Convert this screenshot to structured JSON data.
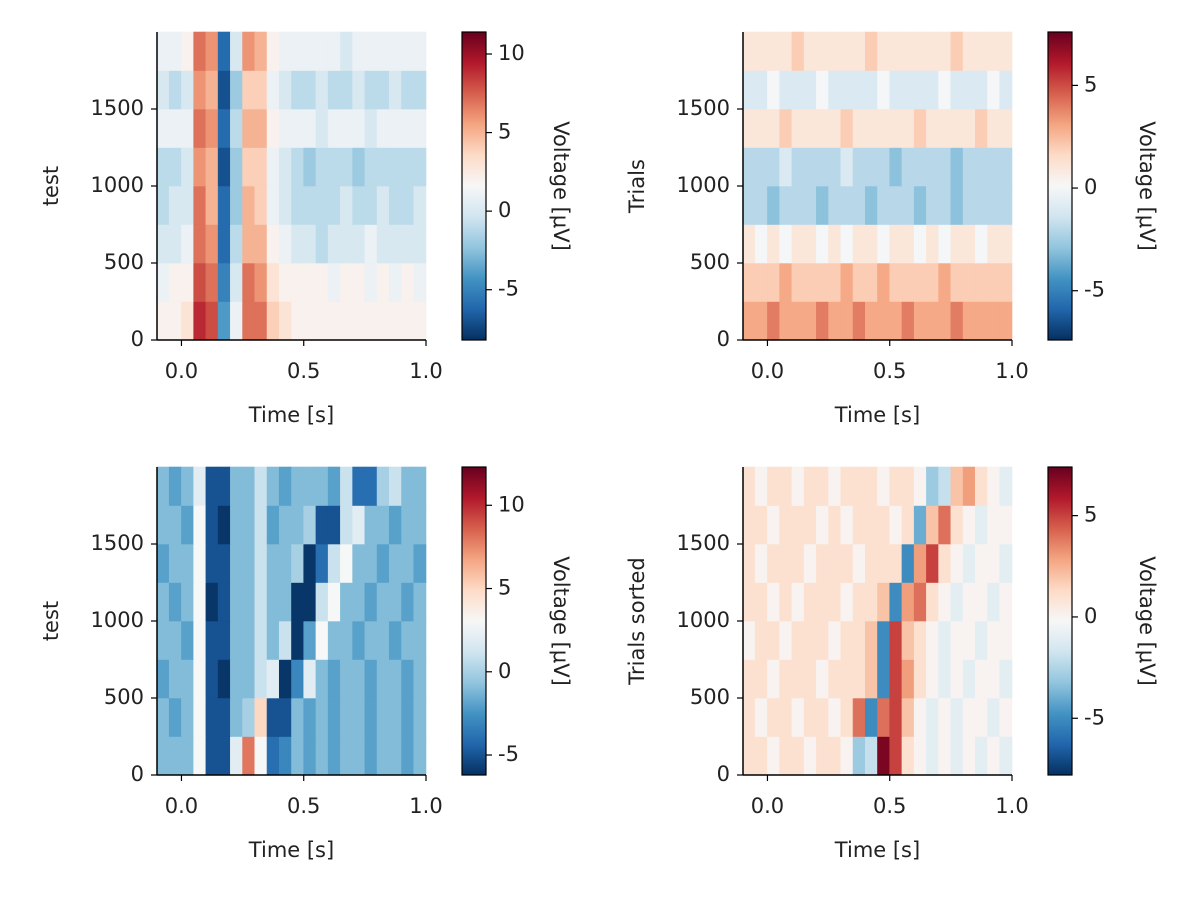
{
  "chart_data": [
    {
      "type": "heatmap",
      "colormap": "RdBu_r",
      "xlabel": "Time [s]",
      "ylabel": "test",
      "colorbar_label": "Voltage [μV]",
      "x": [
        -0.075,
        -0.025,
        0.025,
        0.075,
        0.125,
        0.175,
        0.225,
        0.275,
        0.325,
        0.375,
        0.425,
        0.475,
        0.525,
        0.575,
        0.625,
        0.675,
        0.725,
        0.775,
        0.825,
        0.875,
        0.925,
        0.975
      ],
      "y": [
        125,
        375,
        625,
        875,
        1125,
        1375,
        1625,
        1875
      ],
      "values": [
        [
          2,
          2,
          3,
          9,
          8,
          -4,
          1,
          7,
          7,
          4,
          3,
          2,
          2,
          2,
          2,
          2,
          2,
          2,
          2,
          2,
          2,
          2
        ],
        [
          1,
          2,
          2,
          8,
          7,
          -5,
          0,
          7,
          6,
          3,
          2,
          2,
          2,
          2,
          1,
          2,
          2,
          1,
          2,
          1,
          2,
          1
        ],
        [
          0,
          0,
          1,
          7,
          6,
          -6,
          -1,
          5,
          5,
          2,
          1,
          0,
          0,
          -1,
          0,
          0,
          0,
          1,
          0,
          0,
          0,
          0
        ],
        [
          -1,
          0,
          0,
          7,
          5,
          -6,
          -2,
          5,
          4,
          1,
          0,
          -1,
          -1,
          -1,
          -1,
          0,
          -1,
          -1,
          0,
          -1,
          -1,
          0
        ],
        [
          -1,
          -1,
          0,
          6,
          5,
          -7,
          -2,
          4,
          4,
          1,
          0,
          -1,
          -2,
          -1,
          -1,
          -1,
          -2,
          -1,
          -1,
          -1,
          -1,
          -1
        ],
        [
          1,
          1,
          1,
          7,
          6,
          -6,
          -1,
          5,
          5,
          2,
          1,
          1,
          1,
          0,
          1,
          1,
          1,
          0,
          1,
          1,
          1,
          1
        ],
        [
          0,
          -1,
          0,
          6,
          5,
          -7,
          -2,
          4,
          4,
          1,
          0,
          -1,
          -1,
          0,
          -1,
          -1,
          0,
          -1,
          -1,
          0,
          -1,
          -1
        ],
        [
          1,
          1,
          2,
          7,
          6,
          -6,
          0,
          6,
          5,
          2,
          1,
          1,
          1,
          1,
          1,
          0,
          1,
          1,
          1,
          1,
          1,
          1
        ]
      ],
      "xlim": [
        -0.1,
        1.0
      ],
      "ylim": [
        0,
        2000
      ],
      "xticks": [
        {
          "value": 0,
          "label": "0.0"
        },
        0.5,
        {
          "value": 1,
          "label": "1.0"
        }
      ],
      "yticks": [
        0,
        500,
        1000,
        1500
      ],
      "clim": [
        -8.2,
        11.4
      ],
      "cticks": [
        -5,
        0,
        5,
        10
      ]
    },
    {
      "type": "heatmap",
      "colormap": "RdBu_r",
      "xlabel": "Time [s]",
      "ylabel": "Trials",
      "colorbar_label": "Voltage [μV]",
      "x": [
        -0.075,
        -0.025,
        0.025,
        0.075,
        0.125,
        0.175,
        0.225,
        0.275,
        0.325,
        0.375,
        0.425,
        0.475,
        0.525,
        0.575,
        0.625,
        0.675,
        0.725,
        0.775,
        0.825,
        0.875,
        0.925,
        0.975
      ],
      "y": [
        125,
        375,
        625,
        875,
        1125,
        1375,
        1625,
        1875
      ],
      "values": [
        [
          3,
          3,
          4,
          3,
          3,
          3,
          4,
          3,
          3,
          4,
          3,
          3,
          3,
          4,
          3,
          3,
          3,
          4,
          3,
          3,
          3,
          3
        ],
        [
          2,
          2,
          2,
          3,
          2,
          2,
          2,
          2,
          3,
          2,
          2,
          3,
          2,
          2,
          2,
          2,
          3,
          2,
          2,
          2,
          2,
          2
        ],
        [
          1,
          0,
          1,
          0,
          1,
          1,
          0,
          1,
          0,
          1,
          1,
          0,
          1,
          1,
          0,
          1,
          0,
          1,
          1,
          0,
          1,
          1
        ],
        [
          -2,
          -2,
          -3,
          -2,
          -2,
          -2,
          -3,
          -2,
          -2,
          -2,
          -3,
          -2,
          -2,
          -2,
          -3,
          -2,
          -2,
          -3,
          -2,
          -2,
          -2,
          -2
        ],
        [
          -2,
          -2,
          -2,
          -1,
          -2,
          -2,
          -2,
          -2,
          -1,
          -2,
          -2,
          -2,
          -3,
          -2,
          -2,
          -2,
          -2,
          -3,
          -2,
          -2,
          -2,
          -2
        ],
        [
          1,
          1,
          1,
          2,
          1,
          1,
          1,
          1,
          2,
          1,
          1,
          1,
          1,
          1,
          2,
          1,
          1,
          1,
          1,
          2,
          1,
          1
        ],
        [
          -1,
          -1,
          0,
          -1,
          -1,
          -1,
          0,
          -1,
          -1,
          -1,
          -1,
          0,
          -1,
          -1,
          -1,
          -1,
          0,
          -1,
          -1,
          -1,
          0,
          -1
        ],
        [
          1,
          1,
          1,
          1,
          2,
          1,
          1,
          1,
          1,
          1,
          2,
          1,
          1,
          1,
          1,
          1,
          1,
          2,
          1,
          1,
          1,
          1
        ]
      ],
      "xlim": [
        -0.1,
        1.0
      ],
      "ylim": [
        0,
        2000
      ],
      "xticks": [
        {
          "value": 0,
          "label": "0.0"
        },
        0.5,
        {
          "value": 1,
          "label": "1.0"
        }
      ],
      "yticks": [
        0,
        500,
        1000,
        1500
      ],
      "clim": [
        -7.4,
        7.6
      ],
      "cticks": [
        -5,
        0,
        5
      ]
    },
    {
      "type": "heatmap",
      "colormap": "RdBu_r",
      "xlabel": "Time [s]",
      "ylabel": "test",
      "colorbar_label": "Voltage [μV]",
      "x": [
        -0.075,
        -0.025,
        0.025,
        0.075,
        0.125,
        0.175,
        0.225,
        0.275,
        0.325,
        0.375,
        0.425,
        0.475,
        0.525,
        0.575,
        0.625,
        0.675,
        0.725,
        0.775,
        0.825,
        0.875,
        0.925,
        0.975
      ],
      "y": [
        125,
        375,
        625,
        875,
        1125,
        1375,
        1625,
        1875
      ],
      "values": [
        [
          -1,
          -1,
          -1,
          3,
          -5,
          -5,
          2,
          8,
          3,
          -4,
          -3,
          -1,
          -2,
          -1,
          -2,
          -1,
          -1,
          -2,
          -1,
          -1,
          -2,
          -1
        ],
        [
          -1,
          -2,
          -1,
          3,
          -5,
          -5,
          -1,
          0,
          5,
          -5,
          -5,
          -1,
          -2,
          -1,
          -2,
          -1,
          -1,
          -2,
          -1,
          -1,
          -2,
          -1
        ],
        [
          -2,
          -1,
          -1,
          3,
          -5,
          -6,
          -1,
          -1,
          1,
          2,
          -6,
          -3,
          2,
          -1,
          -2,
          -1,
          -1,
          -2,
          -1,
          -1,
          -2,
          -1
        ],
        [
          -1,
          -1,
          -2,
          3,
          -5,
          -5,
          -1,
          -1,
          1,
          -1,
          1,
          -6,
          -2,
          3,
          -1,
          -1,
          -2,
          -1,
          -1,
          -2,
          -1,
          -1
        ],
        [
          -1,
          -2,
          -1,
          3,
          -6,
          -5,
          -1,
          -1,
          1,
          -1,
          -1,
          -6,
          -6,
          1,
          3,
          -1,
          -1,
          -2,
          -1,
          -1,
          -2,
          -1
        ],
        [
          -2,
          -1,
          -1,
          3,
          -5,
          -5,
          -1,
          -1,
          1,
          -1,
          -1,
          0,
          -6,
          -4,
          1,
          3,
          -1,
          -1,
          -2,
          -1,
          -1,
          -2
        ],
        [
          -1,
          -1,
          -2,
          3,
          -5,
          -6,
          -1,
          -1,
          1,
          -2,
          -1,
          -1,
          0,
          -5,
          -5,
          1,
          2,
          -1,
          -1,
          -2,
          -1,
          -1
        ],
        [
          -1,
          -2,
          -1,
          2,
          -5,
          -5,
          -1,
          -1,
          1,
          -1,
          -2,
          -1,
          -1,
          -1,
          -2,
          1,
          -4,
          -4,
          0,
          1,
          -1,
          -1
        ]
      ],
      "xlim": [
        -0.1,
        1.0
      ],
      "ylim": [
        0,
        2000
      ],
      "xticks": [
        {
          "value": 0,
          "label": "0.0"
        },
        0.5,
        {
          "value": 1,
          "label": "1.0"
        }
      ],
      "yticks": [
        0,
        500,
        1000,
        1500
      ],
      "clim": [
        -6.2,
        12.3
      ],
      "cticks": [
        -5,
        0,
        5,
        10
      ]
    },
    {
      "type": "heatmap",
      "colormap": "RdBu_r",
      "xlabel": "Time [s]",
      "ylabel": "Trials sorted",
      "colorbar_label": "Voltage [μV]",
      "x": [
        -0.075,
        -0.025,
        0.025,
        0.075,
        0.125,
        0.175,
        0.225,
        0.275,
        0.325,
        0.375,
        0.425,
        0.475,
        0.525,
        0.575,
        0.625,
        0.675,
        0.725,
        0.775,
        0.825,
        0.875,
        0.925,
        0.975
      ],
      "y": [
        125,
        375,
        625,
        875,
        1125,
        1375,
        1625,
        1875
      ],
      "values": [
        [
          1,
          1,
          0,
          1,
          1,
          0,
          1,
          1,
          0,
          -3,
          -2,
          7,
          5,
          1,
          0,
          -1,
          0,
          -1,
          0,
          -1,
          0,
          -1
        ],
        [
          1,
          0,
          1,
          1,
          0,
          1,
          1,
          0,
          1,
          4,
          -5,
          4,
          5,
          2,
          0,
          -1,
          0,
          -1,
          0,
          0,
          -1,
          0
        ],
        [
          1,
          1,
          0,
          1,
          1,
          1,
          0,
          1,
          1,
          1,
          2,
          -5,
          5,
          3,
          1,
          0,
          -1,
          0,
          -1,
          0,
          0,
          -1
        ],
        [
          0,
          1,
          1,
          0,
          1,
          1,
          1,
          0,
          1,
          1,
          2,
          -5,
          5,
          2,
          1,
          0,
          -1,
          0,
          0,
          -1,
          0,
          0
        ],
        [
          1,
          1,
          0,
          1,
          0,
          1,
          1,
          1,
          0,
          1,
          1,
          2,
          -5,
          3,
          4,
          1,
          0,
          -1,
          0,
          0,
          -1,
          0
        ],
        [
          1,
          0,
          1,
          1,
          1,
          0,
          1,
          1,
          1,
          0,
          1,
          1,
          1,
          -5,
          3,
          5,
          1,
          0,
          -1,
          0,
          0,
          -1
        ],
        [
          1,
          1,
          0,
          1,
          1,
          1,
          0,
          1,
          0,
          1,
          1,
          1,
          0,
          1,
          -4,
          2,
          4,
          1,
          0,
          -1,
          0,
          0
        ],
        [
          1,
          0,
          1,
          1,
          0,
          1,
          1,
          0,
          1,
          1,
          1,
          0,
          1,
          1,
          0,
          -3,
          -2,
          2,
          3,
          1,
          0,
          -1
        ]
      ],
      "xlim": [
        -0.1,
        1.0
      ],
      "ylim": [
        0,
        2000
      ],
      "xticks": [
        {
          "value": 0,
          "label": "0.0"
        },
        0.5,
        {
          "value": 1,
          "label": "1.0"
        }
      ],
      "yticks": [
        0,
        500,
        1000,
        1500
      ],
      "clim": [
        -7.8,
        7.4
      ],
      "cticks": [
        -5,
        0,
        5
      ]
    }
  ]
}
